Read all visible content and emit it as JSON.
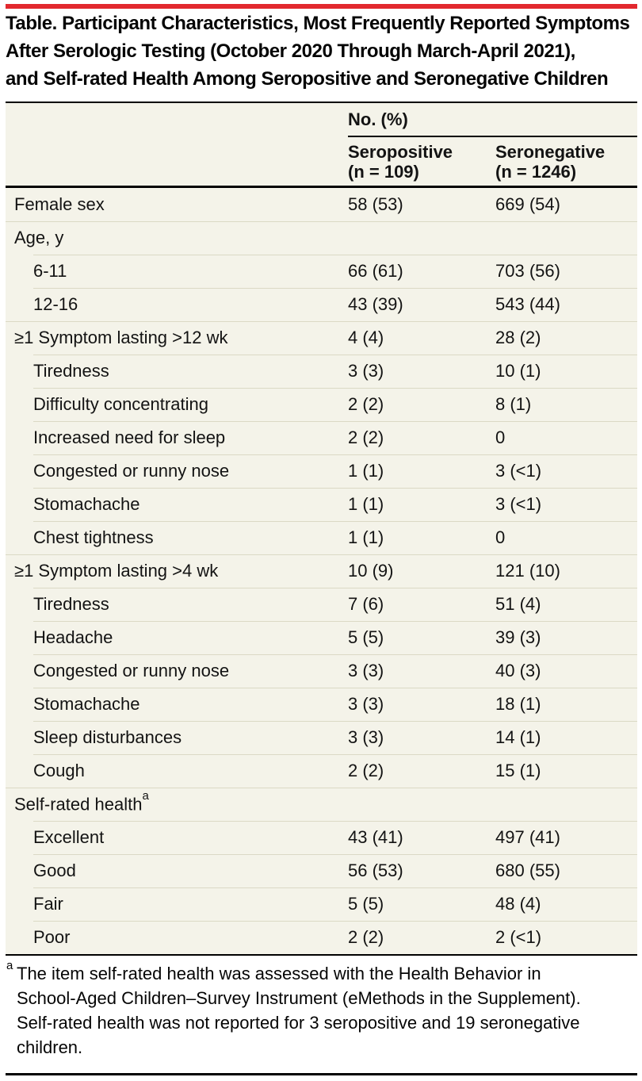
{
  "colors": {
    "accent_red": "#e2282e",
    "table_background": "#f4f3e9",
    "row_separator": "#dbd9c5",
    "rule_black": "#000000"
  },
  "title": {
    "lines": [
      "Table. Participant Characteristics, Most Frequently Reported Symptoms",
      "After Serologic Testing (October 2020 Through March-April 2021),",
      "and Self-rated Health Among Seropositive and Seronegative Children"
    ]
  },
  "table": {
    "header": {
      "group_label": "No. (%)",
      "columns": [
        {
          "name": "Seropositive",
          "n": "(n = 109)"
        },
        {
          "name": "Seronegative",
          "n": "(n = 1246)"
        }
      ]
    },
    "rows": [
      {
        "label": "Female sex",
        "indent": false,
        "seropositive": "58 (53)",
        "seronegative": "669 (54)"
      },
      {
        "label": "Age, y",
        "indent": false,
        "seropositive": "",
        "seronegative": ""
      },
      {
        "label": "6-11",
        "indent": true,
        "seropositive": "66 (61)",
        "seronegative": "703 (56)"
      },
      {
        "label": "12-16",
        "indent": true,
        "seropositive": "43 (39)",
        "seronegative": "543 (44)"
      },
      {
        "label": "≥1 Symptom lasting >12 wk",
        "indent": false,
        "seropositive": "4 (4)",
        "seronegative": "28 (2)"
      },
      {
        "label": "Tiredness",
        "indent": true,
        "seropositive": "3 (3)",
        "seronegative": "10 (1)"
      },
      {
        "label": "Difficulty concentrating",
        "indent": true,
        "seropositive": "2 (2)",
        "seronegative": "8 (1)"
      },
      {
        "label": "Increased need for sleep",
        "indent": true,
        "seropositive": "2 (2)",
        "seronegative": "0"
      },
      {
        "label": "Congested or runny nose",
        "indent": true,
        "seropositive": "1 (1)",
        "seronegative": "3 (<1)"
      },
      {
        "label": "Stomachache",
        "indent": true,
        "seropositive": "1 (1)",
        "seronegative": "3 (<1)"
      },
      {
        "label": "Chest tightness",
        "indent": true,
        "seropositive": "1 (1)",
        "seronegative": "0"
      },
      {
        "label": "≥1 Symptom lasting >4 wk",
        "indent": false,
        "seropositive": "10 (9)",
        "seronegative": "121 (10)"
      },
      {
        "label": "Tiredness",
        "indent": true,
        "seropositive": "7 (6)",
        "seronegative": "51 (4)"
      },
      {
        "label": "Headache",
        "indent": true,
        "seropositive": "5 (5)",
        "seronegative": "39 (3)"
      },
      {
        "label": "Congested or runny nose",
        "indent": true,
        "seropositive": "3 (3)",
        "seronegative": "40 (3)"
      },
      {
        "label": "Stomachache",
        "indent": true,
        "seropositive": "3 (3)",
        "seronegative": "18 (1)"
      },
      {
        "label": "Sleep disturbances",
        "indent": true,
        "seropositive": "3 (3)",
        "seronegative": "14 (1)"
      },
      {
        "label": "Cough",
        "indent": true,
        "seropositive": "2 (2)",
        "seronegative": "15 (1)"
      },
      {
        "label": "Self-rated health",
        "sup": "a",
        "indent": false,
        "seropositive": "",
        "seronegative": ""
      },
      {
        "label": "Excellent",
        "indent": true,
        "seropositive": "43 (41)",
        "seronegative": "497 (41)"
      },
      {
        "label": "Good",
        "indent": true,
        "seropositive": "56 (53)",
        "seronegative": "680 (55)"
      },
      {
        "label": "Fair",
        "indent": true,
        "seropositive": "5 (5)",
        "seronegative": "48 (4)"
      },
      {
        "label": "Poor",
        "indent": true,
        "seropositive": "2 (2)",
        "seronegative": "2 (<1)"
      }
    ]
  },
  "footnote": {
    "marker": "a",
    "lines": [
      "The item self-rated health was assessed with the Health Behavior in",
      "School-Aged Children–Survey Instrument (eMethods in the Supplement).",
      "Self-rated health was not reported for 3 seropositive and 19 seronegative",
      "children."
    ]
  }
}
